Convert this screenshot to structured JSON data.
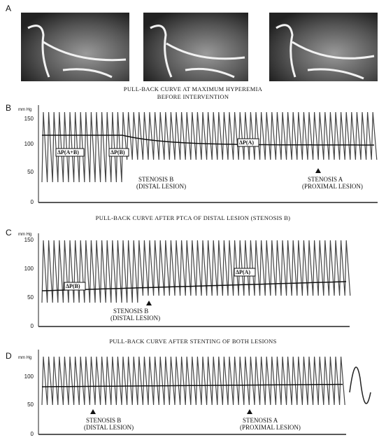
{
  "panels": [
    {
      "label": "A",
      "caption": [
        "PULL-BACK CURVE AT MAXIMUM HYPEREMIA",
        "BEFORE INTERVENTION"
      ]
    },
    {
      "label": "B",
      "unit": "mm Hg",
      "yticks": [
        "150",
        "100",
        "50",
        "0"
      ],
      "annotations": [
        "ΔP(A+B)",
        "ΔP(B)",
        "ΔP(A)"
      ],
      "stenosis_b": [
        "STENOSIS B",
        "(DISTAL LESION)"
      ],
      "stenosis_a": [
        "STENOSIS A",
        "(PROXIMAL LESION)"
      ],
      "caption": "PULL-BACK CURVE  AFTER PTCA OF DISTAL LESION (STENOSIS  B)"
    },
    {
      "label": "C",
      "unit": "mm Hg",
      "yticks": [
        "150",
        "100",
        "50",
        "0"
      ],
      "annotations": [
        "ΔP(B)",
        "ΔP(A)"
      ],
      "stenosis_b": [
        "STENOSIS B",
        "(DISTAL LESION)"
      ],
      "caption": "PULL-BACK CURVE  AFTER STENTING OF BOTH LESIONS"
    },
    {
      "label": "D",
      "unit": "mm Hg",
      "yticks": [
        "100",
        "50",
        "0"
      ],
      "stenosis_b": [
        "STENOSIS B",
        "(DISTAL LESION)"
      ],
      "stenosis_a": [
        "STENOSIS A",
        "(PROXIMAL LESION)"
      ]
    }
  ]
}
